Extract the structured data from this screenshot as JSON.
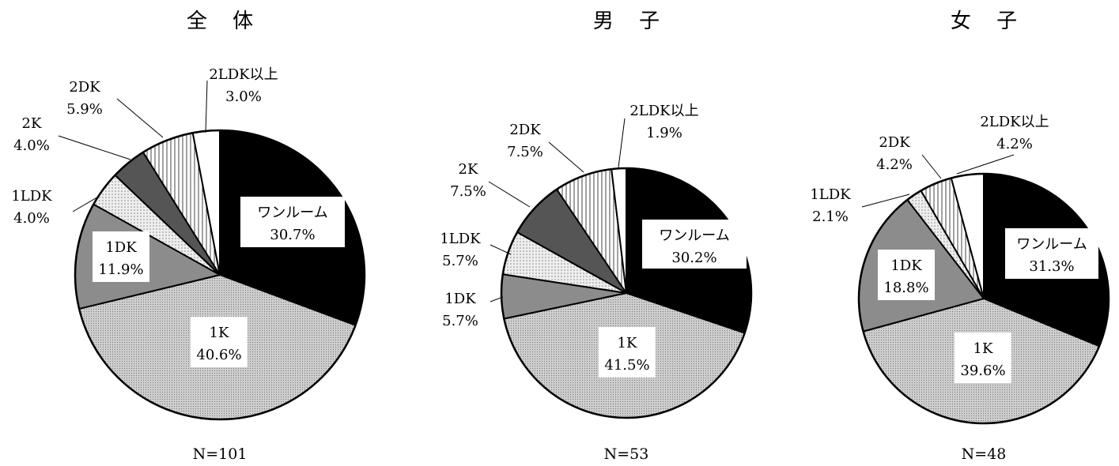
{
  "chart_data": [
    {
      "type": "pie",
      "title": "全 体",
      "n_label": "N=101",
      "slices": [
        {
          "label": "ワンルーム",
          "value": 30.7,
          "value_text": "30.7%",
          "fill": "#000000"
        },
        {
          "label": "1K",
          "value": 40.6,
          "value_text": "40.6%",
          "fill": "#c8c8c8"
        },
        {
          "label": "1DK",
          "value": 11.9,
          "value_text": "11.9%",
          "fill": "#8c8c8c"
        },
        {
          "label": "1LDK",
          "value": 4.0,
          "value_text": "4.0%",
          "fill": "#e4e4e4"
        },
        {
          "label": "2K",
          "value": 4.0,
          "value_text": "4.0%",
          "fill": "#555555"
        },
        {
          "label": "2DK",
          "value": 5.9,
          "value_text": "5.9%",
          "fill": "#b0b0b0"
        },
        {
          "label": "2LDK以上",
          "value": 3.0,
          "value_text": "3.0%",
          "fill": "#ffffff"
        }
      ]
    },
    {
      "type": "pie",
      "title": "男 子",
      "n_label": "N=53",
      "slices": [
        {
          "label": "ワンルーム",
          "value": 30.2,
          "value_text": "30.2%",
          "fill": "#000000"
        },
        {
          "label": "1K",
          "value": 41.5,
          "value_text": "41.5%",
          "fill": "#c8c8c8"
        },
        {
          "label": "1DK",
          "value": 5.7,
          "value_text": "5.7%",
          "fill": "#8c8c8c"
        },
        {
          "label": "1LDK",
          "value": 5.7,
          "value_text": "5.7%",
          "fill": "#e4e4e4"
        },
        {
          "label": "2K",
          "value": 7.5,
          "value_text": "7.5%",
          "fill": "#555555"
        },
        {
          "label": "2DK",
          "value": 7.5,
          "value_text": "7.5%",
          "fill": "#b0b0b0"
        },
        {
          "label": "2LDK以上",
          "value": 1.9,
          "value_text": "1.9%",
          "fill": "#ffffff"
        }
      ]
    },
    {
      "type": "pie",
      "title": "女 子",
      "n_label": "N=48",
      "slices": [
        {
          "label": "ワンルーム",
          "value": 31.3,
          "value_text": "31.3%",
          "fill": "#000000"
        },
        {
          "label": "1K",
          "value": 39.6,
          "value_text": "39.6%",
          "fill": "#c8c8c8"
        },
        {
          "label": "1DK",
          "value": 18.8,
          "value_text": "18.8%",
          "fill": "#8c8c8c"
        },
        {
          "label": "1LDK",
          "value": 2.1,
          "value_text": "2.1%",
          "fill": "#e4e4e4"
        },
        {
          "label": "2DK",
          "value": 4.2,
          "value_text": "4.2%",
          "fill": "#b0b0b0"
        },
        {
          "label": "2LDK以上",
          "value": 4.2,
          "value_text": "4.2%",
          "fill": "#ffffff"
        }
      ]
    }
  ]
}
